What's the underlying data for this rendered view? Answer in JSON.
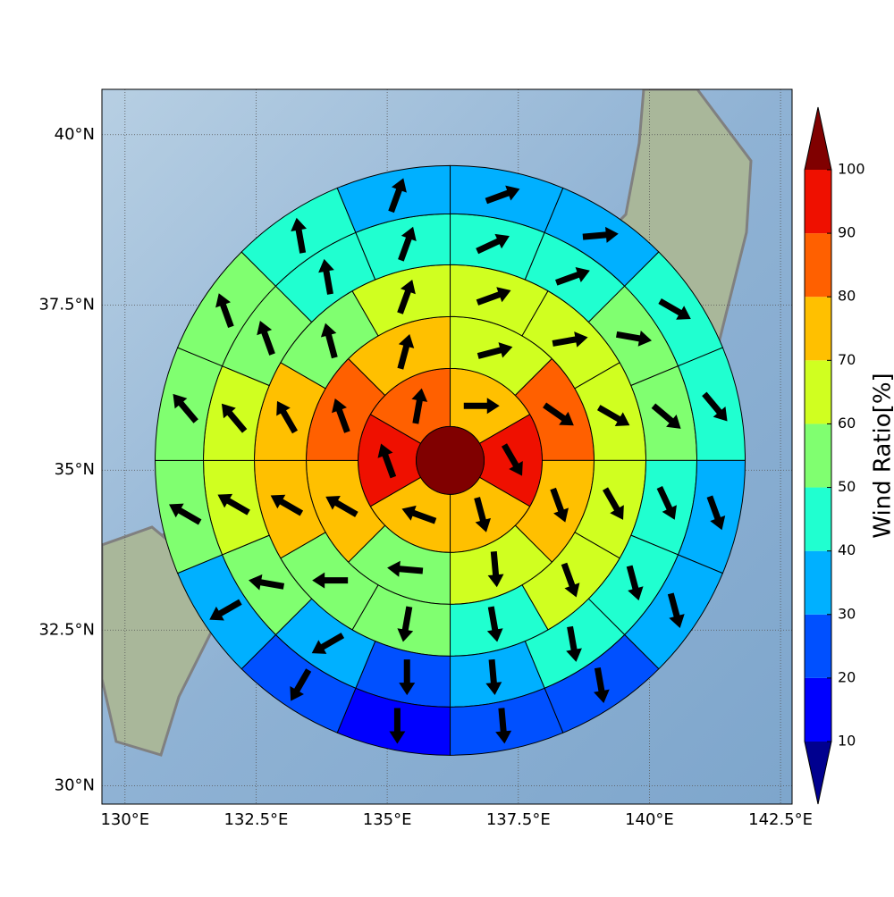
{
  "chart_data": {
    "type": "polar-sector-map",
    "projection": "mercator",
    "xlim": [
      129.56,
      142.72
    ],
    "ylim": [
      29.7,
      40.65
    ],
    "xticks": [
      {
        "value": 130,
        "label": "130°E"
      },
      {
        "value": 132.5,
        "label": "132.5°E"
      },
      {
        "value": 135,
        "label": "135°E"
      },
      {
        "value": 137.5,
        "label": "137.5°E"
      },
      {
        "value": 140,
        "label": "140°E"
      },
      {
        "value": 142.5,
        "label": "142.5°E"
      }
    ],
    "yticks": [
      {
        "value": 30,
        "label": "30°N"
      },
      {
        "value": 32.5,
        "label": "32.5°N"
      },
      {
        "value": 35,
        "label": "35°N"
      },
      {
        "value": 37.5,
        "label": "37.5°N"
      },
      {
        "value": 40,
        "label": "40°N"
      }
    ],
    "grid": true,
    "center": {
      "lon": 136.2,
      "lat": 35.15,
      "value": 105
    },
    "rings": [
      {
        "values": [
          75,
          95,
          75,
          75,
          95,
          85
        ],
        "directions": [
          90,
          150,
          165,
          290,
          340,
          10
        ]
      },
      {
        "values": [
          65,
          85,
          75,
          65,
          55,
          75,
          85,
          75
        ],
        "directions": [
          75,
          125,
          160,
          175,
          275,
          300,
          340,
          15
        ]
      },
      {
        "values": [
          65,
          65,
          65,
          65,
          65,
          45,
          55,
          55,
          75,
          75,
          55,
          65
        ],
        "directions": [
          70,
          80,
          120,
          150,
          160,
          170,
          190,
          270,
          300,
          330,
          345,
          20
        ]
      },
      {
        "values": [
          45,
          45,
          55,
          55,
          45,
          45,
          45,
          35,
          25,
          35,
          55,
          65,
          65,
          55,
          45,
          45
        ],
        "directions": [
          65,
          70,
          100,
          130,
          155,
          165,
          170,
          175,
          180,
          240,
          280,
          300,
          320,
          340,
          350,
          20
        ]
      },
      {
        "values": [
          35,
          35,
          45,
          45,
          35,
          35,
          25,
          25,
          15,
          25,
          35,
          55,
          55,
          55,
          45,
          35
        ],
        "directions": [
          70,
          85,
          120,
          140,
          160,
          165,
          170,
          175,
          180,
          210,
          240,
          300,
          320,
          340,
          350,
          20
        ]
      }
    ],
    "colorbar": {
      "label": "Wind Ratio[%]",
      "ticks": [
        10,
        20,
        30,
        40,
        50,
        60,
        70,
        80,
        90,
        100
      ],
      "colors": [
        "#00008f",
        "#0000ff",
        "#0050ff",
        "#00b0ff",
        "#20ffd0",
        "#80ff70",
        "#d0ff20",
        "#ffc000",
        "#ff6000",
        "#ef1000",
        "#800000"
      ]
    }
  }
}
